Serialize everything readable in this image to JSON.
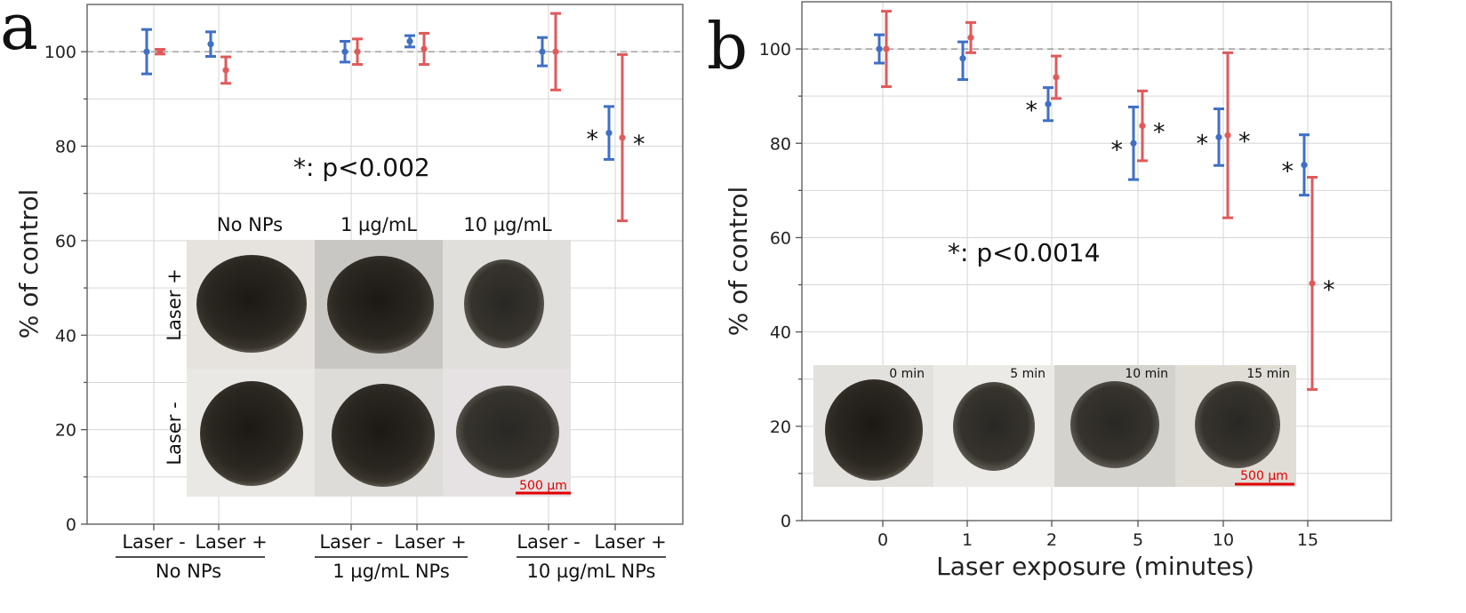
{
  "colors": {
    "laser_minus": "#3f6fc6",
    "laser_plus": "#e05a5a",
    "scalebar": "#e00000"
  },
  "chart_data": [
    {
      "type": "scatter",
      "panel_label": "a",
      "ylabel": "% of control",
      "ylim": [
        0,
        110
      ],
      "yticks": [
        0,
        20,
        40,
        60,
        80,
        100
      ],
      "reference_line": 100,
      "annotation": "*: p<0.002",
      "categories": [
        "Laser -",
        "Laser +",
        "Laser -",
        "Laser +",
        "Laser -",
        "Laser +"
      ],
      "groups": [
        "No NPs",
        "1 µg/mL NPs",
        "10 µg/mL NPs"
      ],
      "series": [
        {
          "name": "blue",
          "color": "#3f6fc6",
          "points": [
            {
              "x": 0,
              "y": 100,
              "lo": 95.3,
              "hi": 104.7
            },
            {
              "x": 1,
              "y": 101.6,
              "lo": 99.0,
              "hi": 104.2
            },
            {
              "x": 2,
              "y": 100,
              "lo": 97.8,
              "hi": 102.2
            },
            {
              "x": 3,
              "y": 102.2,
              "lo": 101.0,
              "hi": 103.4
            },
            {
              "x": 4,
              "y": 100,
              "lo": 97.0,
              "hi": 103.0
            },
            {
              "x": 5,
              "y": 82.8,
              "lo": 77.2,
              "hi": 88.4,
              "sig": true
            }
          ]
        },
        {
          "name": "red",
          "color": "#e05a5a",
          "points": [
            {
              "x": 0,
              "y": 100,
              "lo": 99.5,
              "hi": 100.5
            },
            {
              "x": 1,
              "y": 96.1,
              "lo": 93.3,
              "hi": 98.9
            },
            {
              "x": 2,
              "y": 100,
              "lo": 97.3,
              "hi": 102.7
            },
            {
              "x": 3,
              "y": 100.6,
              "lo": 97.3,
              "hi": 103.9
            },
            {
              "x": 4,
              "y": 100,
              "lo": 91.9,
              "hi": 108.1
            },
            {
              "x": 5,
              "y": 81.8,
              "lo": 64.2,
              "hi": 99.4,
              "sig": true
            }
          ]
        }
      ],
      "inset": {
        "column_labels": [
          "No NPs",
          "1 µg/mL",
          "10 µg/mL"
        ],
        "row_labels": [
          "Laser +",
          "Laser -"
        ],
        "scale_bar": "500 µm"
      }
    },
    {
      "type": "scatter",
      "panel_label": "b",
      "ylabel": "% of control",
      "xlabel": "Laser exposure (minutes)",
      "ylim": [
        0,
        110
      ],
      "yticks": [
        0,
        20,
        40,
        60,
        80,
        100
      ],
      "reference_line": 100,
      "annotation": "*: p<0.0014",
      "categories": [
        "0",
        "1",
        "2",
        "5",
        "10",
        "15"
      ],
      "series": [
        {
          "name": "blue",
          "color": "#3f6fc6",
          "points": [
            {
              "x": 0,
              "y": 100,
              "lo": 97.0,
              "hi": 103.0
            },
            {
              "x": 1,
              "y": 98.0,
              "lo": 93.5,
              "hi": 101.5
            },
            {
              "x": 2,
              "y": 88.3,
              "lo": 84.8,
              "hi": 91.8,
              "sig": true
            },
            {
              "x": 3,
              "y": 80.0,
              "lo": 72.3,
              "hi": 87.7,
              "sig": true
            },
            {
              "x": 4,
              "y": 81.3,
              "lo": 75.3,
              "hi": 87.3,
              "sig": true
            },
            {
              "x": 5,
              "y": 75.4,
              "lo": 69.0,
              "hi": 81.8,
              "sig": true
            }
          ]
        },
        {
          "name": "red",
          "color": "#e05a5a",
          "points": [
            {
              "x": 0,
              "y": 100,
              "lo": 92.0,
              "hi": 108.0
            },
            {
              "x": 1,
              "y": 102.4,
              "lo": 99.2,
              "hi": 105.6
            },
            {
              "x": 2,
              "y": 94.0,
              "lo": 89.5,
              "hi": 98.5
            },
            {
              "x": 3,
              "y": 83.7,
              "lo": 76.3,
              "hi": 91.1,
              "sig": true
            },
            {
              "x": 4,
              "y": 81.7,
              "lo": 64.2,
              "hi": 99.2,
              "sig": true
            },
            {
              "x": 5,
              "y": 50.3,
              "lo": 27.8,
              "hi": 72.8,
              "sig": true
            }
          ]
        }
      ],
      "inset": {
        "time_labels": [
          "0 min",
          "5 min",
          "10 min",
          "15 min"
        ],
        "scale_bar": "500 µm"
      }
    }
  ]
}
